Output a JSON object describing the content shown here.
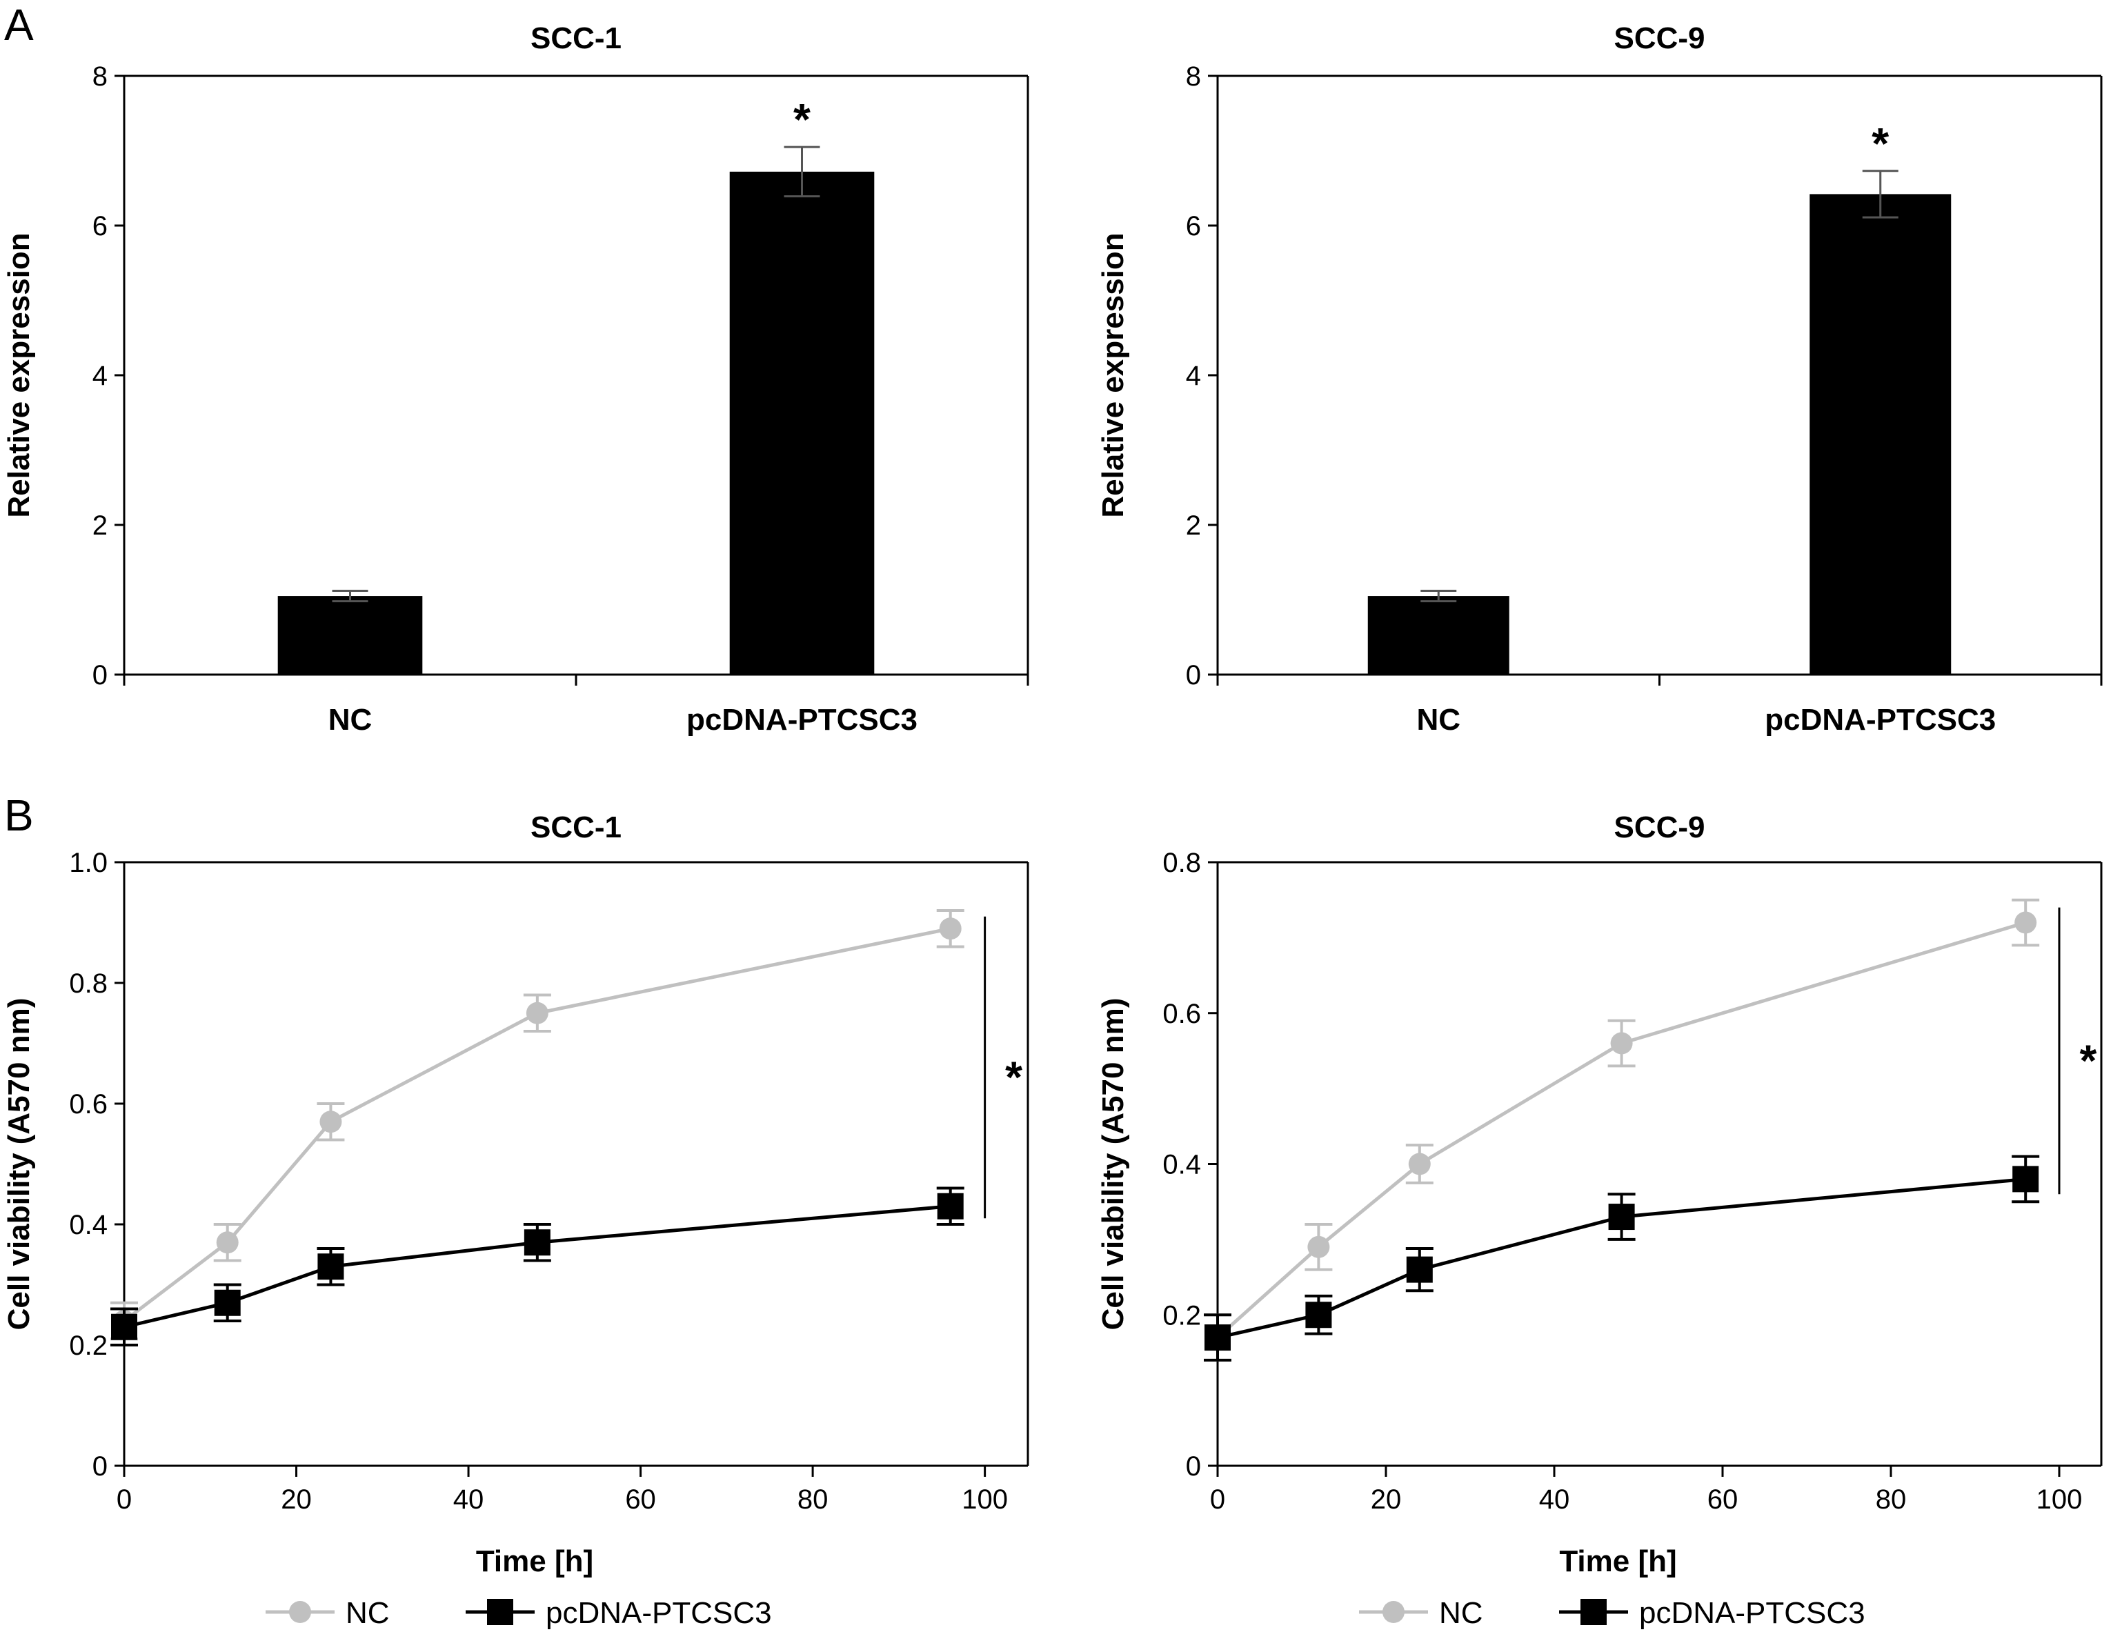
{
  "figure": {
    "panel_labels": [
      "A",
      "B"
    ],
    "legend": [
      {
        "label": "NC",
        "color": "#c0c0c0",
        "marker": "circle"
      },
      {
        "label": "pcDNA-PTCSC3",
        "color": "#000000",
        "marker": "square"
      }
    ]
  },
  "chart_data": [
    {
      "type": "bar",
      "title": "SCC-1",
      "xlabel": "",
      "ylabel": "Relative expression",
      "ylim": [
        0,
        8
      ],
      "yticks": [
        0,
        2,
        4,
        6,
        8
      ],
      "categories": [
        "NC",
        "pcDNA-PTCSC3"
      ],
      "values": [
        1.05,
        6.72
      ],
      "errors": [
        0.07,
        0.33
      ],
      "bar_color": "#000000",
      "error_color": "#555555",
      "significance": [
        "",
        "*"
      ]
    },
    {
      "type": "bar",
      "title": "SCC-9",
      "xlabel": "",
      "ylabel": "Relative expression",
      "ylim": [
        0,
        8
      ],
      "yticks": [
        0,
        2,
        4,
        6,
        8
      ],
      "categories": [
        "NC",
        "pcDNA-PTCSC3"
      ],
      "values": [
        1.05,
        6.42
      ],
      "errors": [
        0.07,
        0.31
      ],
      "bar_color": "#000000",
      "error_color": "#555555",
      "significance": [
        "",
        "*"
      ]
    },
    {
      "type": "line",
      "title": "SCC-1",
      "xlabel": "Time [h]",
      "ylabel": "Cell viability (A570 nm)",
      "xlim": [
        0,
        105
      ],
      "ylim": [
        0,
        1.0
      ],
      "xticks": [
        0,
        20,
        40,
        60,
        80,
        100
      ],
      "yticks": [
        0,
        0.2,
        0.4,
        0.6,
        0.8,
        1.0
      ],
      "ytick_labels": [
        "0",
        "0.2",
        "0.4",
        "0.6",
        "0.8",
        "1.0"
      ],
      "x": [
        0,
        12,
        24,
        48,
        96
      ],
      "series": [
        {
          "name": "NC",
          "color": "#c0c0c0",
          "marker": "circle",
          "values": [
            0.24,
            0.37,
            0.57,
            0.75,
            0.89
          ],
          "errors": [
            0.03,
            0.03,
            0.03,
            0.03,
            0.03
          ]
        },
        {
          "name": "pcDNA-PTCSC3",
          "color": "#000000",
          "marker": "square",
          "values": [
            0.23,
            0.27,
            0.33,
            0.37,
            0.43
          ],
          "errors": [
            0.03,
            0.03,
            0.03,
            0.03,
            0.03
          ]
        }
      ],
      "significance": {
        "label": "*",
        "x": 100,
        "y_range": [
          0.41,
          0.91
        ]
      }
    },
    {
      "type": "line",
      "title": "SCC-9",
      "xlabel": "Time [h]",
      "ylabel": "Cell viability (A570 nm)",
      "xlim": [
        0,
        105
      ],
      "ylim": [
        0,
        0.8
      ],
      "xticks": [
        0,
        20,
        40,
        60,
        80,
        100
      ],
      "yticks": [
        0,
        0.2,
        0.4,
        0.6,
        0.8
      ],
      "ytick_labels": [
        "0",
        "0.2",
        "0.4",
        "0.6",
        "0.8"
      ],
      "x": [
        0,
        12,
        24,
        48,
        96
      ],
      "series": [
        {
          "name": "NC",
          "color": "#c0c0c0",
          "marker": "circle",
          "values": [
            0.17,
            0.29,
            0.4,
            0.56,
            0.72
          ],
          "errors": [
            0.03,
            0.03,
            0.025,
            0.03,
            0.03
          ]
        },
        {
          "name": "pcDNA-PTCSC3",
          "color": "#000000",
          "marker": "square",
          "values": [
            0.17,
            0.2,
            0.26,
            0.33,
            0.38
          ],
          "errors": [
            0.03,
            0.025,
            0.028,
            0.03,
            0.03
          ]
        }
      ],
      "significance": {
        "label": "*",
        "x": 100,
        "y_range": [
          0.36,
          0.74
        ]
      }
    }
  ]
}
